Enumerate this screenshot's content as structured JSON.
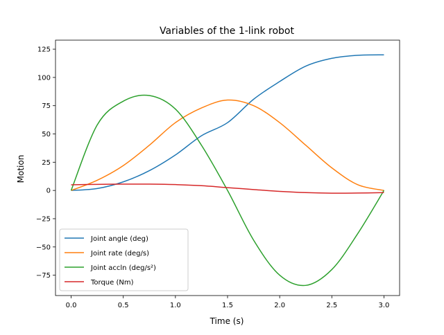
{
  "chart_data": {
    "type": "line",
    "title": "Variables of the 1-link robot",
    "xlabel": "Time (s)",
    "ylabel": "Motion",
    "xlim": [
      -0.15,
      3.15
    ],
    "ylim": [
      -93,
      133
    ],
    "xticks": [
      0.0,
      0.5,
      1.0,
      1.5,
      2.0,
      2.5,
      3.0
    ],
    "xtick_labels": [
      "0.0",
      "0.5",
      "1.0",
      "1.5",
      "2.0",
      "2.5",
      "3.0"
    ],
    "yticks": [
      -75,
      -50,
      -25,
      0,
      25,
      50,
      75,
      100,
      125
    ],
    "ytick_labels": [
      "−75",
      "−50",
      "−25",
      "0",
      "25",
      "50",
      "75",
      "100",
      "125"
    ],
    "grid": false,
    "legend_position": "lower-left",
    "x": [
      0.0,
      0.25,
      0.5,
      0.75,
      1.0,
      1.25,
      1.5,
      1.75,
      2.0,
      2.25,
      2.5,
      2.75,
      3.0
    ],
    "series": [
      {
        "name": "Joint angle (deg)",
        "color": "#1f77b4",
        "values": [
          0,
          1.7,
          7.6,
          17.5,
          31.4,
          48.4,
          60,
          80.7,
          96.4,
          110,
          116.9,
          119.6,
          120
        ]
      },
      {
        "name": "Joint rate (deg/s)",
        "color": "#ff7f0e",
        "values": [
          0,
          9,
          22,
          40,
          60,
          73,
          80,
          75,
          60,
          40,
          20,
          5,
          0
        ]
      },
      {
        "name": "Joint accln (deg/s²)",
        "color": "#2ca02c",
        "values": [
          0,
          58,
          79,
          84,
          72,
          40,
          0,
          -44,
          -75,
          -84,
          -70,
          -38,
          0
        ]
      },
      {
        "name": "Torque (Nm)",
        "color": "#d62728",
        "values": [
          5,
          5.4,
          5.6,
          5.6,
          5.2,
          4.2,
          2.5,
          0.8,
          -0.8,
          -1.9,
          -2.4,
          -2.3,
          -1.9
        ]
      }
    ]
  }
}
